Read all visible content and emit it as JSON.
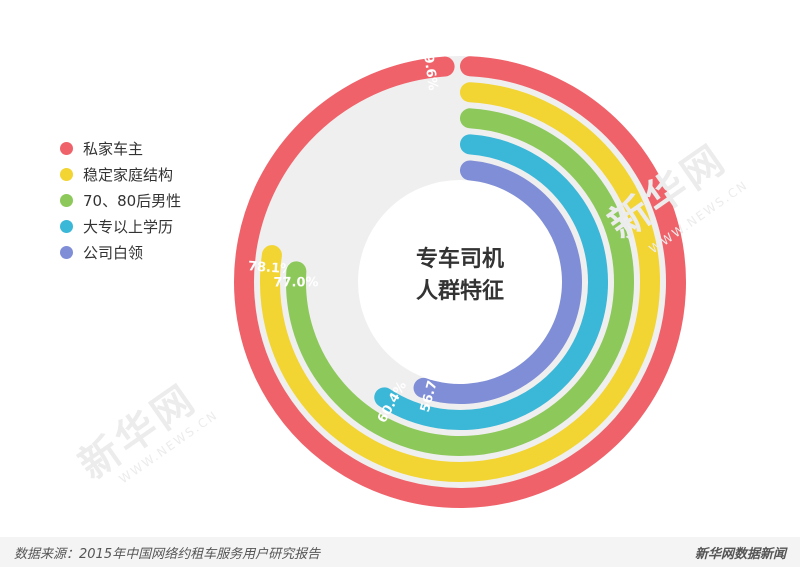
{
  "chart_data": {
    "type": "radial-bar",
    "title": "专车司机\n人群特征",
    "title_lines": [
      "专车司机",
      "人群特征"
    ],
    "series": [
      {
        "name": "私家车主",
        "value": 99.6,
        "label": "99.6%",
        "color": "#f0626a"
      },
      {
        "name": "稳定家庭结构",
        "value": 78.1,
        "label": "78.1%",
        "color": "#f2d432"
      },
      {
        "name": "70、80后男性",
        "value": 77.0,
        "label": "77.0%",
        "color": "#8cc85a"
      },
      {
        "name": "大专以上学历",
        "value": 60.4,
        "label": "60.4%",
        "color": "#3bb7d8"
      },
      {
        "name": "公司白领",
        "value": 56.7,
        "label": "56.7%",
        "color": "#7f8ed6"
      }
    ],
    "max": 100,
    "legend_position": "left"
  },
  "watermark": {
    "text": "新华网",
    "sub": "WWW.NEWS.CN"
  },
  "footer": {
    "source": "数据来源：2015年中国网络约租车服务用户研究报告",
    "brand": "新华网数据新闻"
  }
}
